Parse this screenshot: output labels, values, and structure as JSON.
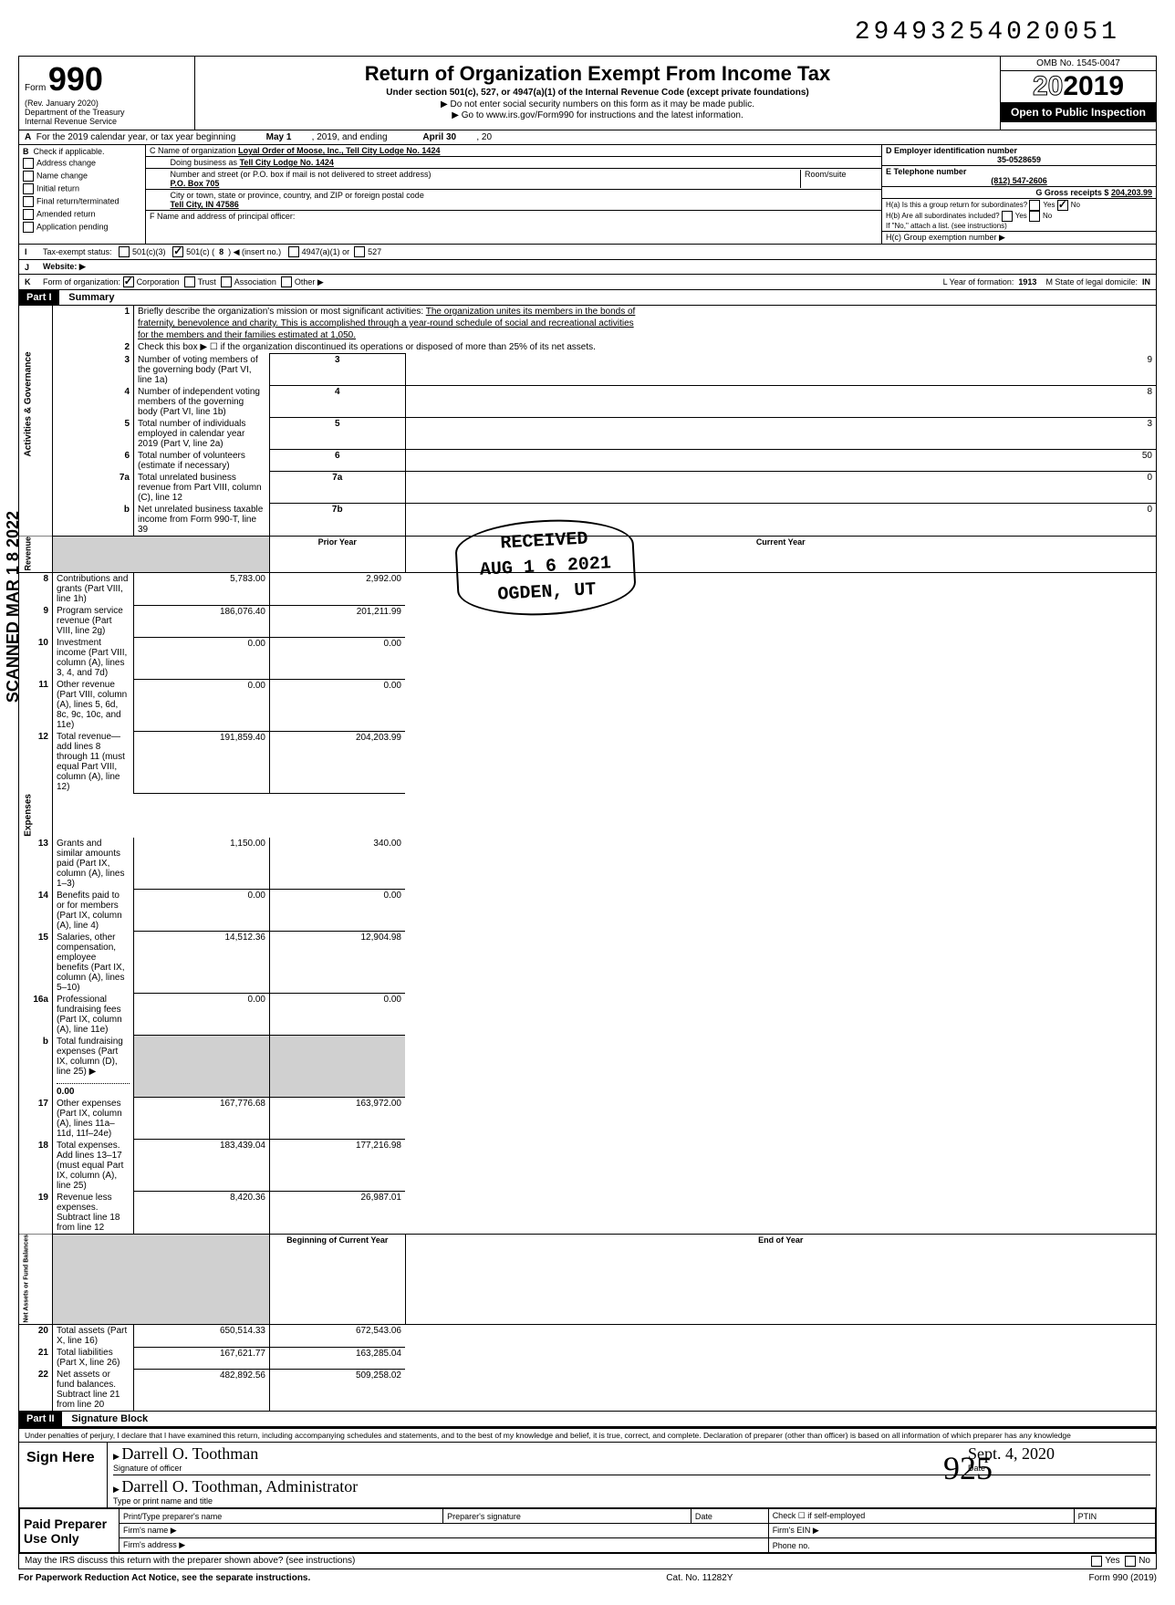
{
  "dln": "29493254020051",
  "omb": "OMB No. 1545-0047",
  "form_number": "990",
  "rev": "(Rev. January 2020)",
  "dept": "Department of the Treasury",
  "irs": "Internal Revenue Service",
  "title": "Return of Organization Exempt From Income Tax",
  "subtitle": "Under section 501(c), 527, or 4947(a)(1) of the Internal Revenue Code (except private foundations)",
  "note1": "▶ Do not enter social security numbers on this form as it may be made public.",
  "note2": "▶ Go to www.irs.gov/Form990 for instructions and the latest information.",
  "tax_year": "2019",
  "open_public": "Open to Public Inspection",
  "row_a": {
    "prefix": "A",
    "text": "For the 2019 calendar year, or tax year beginning",
    "begin": "May 1",
    "mid": ", 2019, and ending",
    "end": "April 30",
    "end_year": ", 20"
  },
  "checkboxes_b": {
    "label": "B",
    "intro": "Check if applicable.",
    "items": [
      "Address change",
      "Name change",
      "Initial return",
      "Final return/terminated",
      "Amended return",
      "Application pending"
    ]
  },
  "entity": {
    "c_label": "C Name of organization",
    "c_name": "Loyal Order of Moose, Inc., Tell City Lodge No. 1424",
    "dba_label": "Doing business as",
    "dba": "Tell City Lodge No. 1424",
    "street_label": "Number and street (or P.O. box if mail is not delivered to street address)",
    "street": "P.O. Box 705",
    "room_label": "Room/suite",
    "city_label": "City or town, state or province, country, and ZIP or foreign postal code",
    "city": "Tell City, IN 47586",
    "f_label": "F Name and address of principal officer:"
  },
  "right_col": {
    "d_label": "D Employer identification number",
    "d_ein": "35-0528659",
    "e_label": "E Telephone number",
    "e_phone": "(812) 547-2606",
    "g_label": "G Gross receipts $",
    "g_amount": "204,203.99",
    "ha_label": "H(a) Is this a group return for subordinates?",
    "hb_label": "H(b) Are all subordinates included?",
    "h_note": "If \"No,\" attach a list. (see instructions)",
    "hc_label": "H(c) Group exemption number ▶"
  },
  "row_i": {
    "label": "I",
    "text": "Tax-exempt status:",
    "opts": [
      "501(c)(3)",
      "501(c) (",
      "8",
      ") ◀ (insert no.)",
      "4947(a)(1) or",
      "527"
    ],
    "checked_index": 1
  },
  "row_j": {
    "label": "J",
    "text": "Website: ▶"
  },
  "row_k": {
    "label": "K",
    "form_of_org": "Form of organization:",
    "opts": [
      "Corporation",
      "Trust",
      "Association",
      "Other ▶"
    ],
    "year_label": "L Year of formation:",
    "year": "1913",
    "state_label": "M State of legal domicile:",
    "state": "IN"
  },
  "part1": {
    "header": "Part I",
    "title": "Summary",
    "mission_label": "Briefly describe the organization's mission or most significant activities:",
    "mission1": "The organization unites its members in the bonds of",
    "mission2": "fraternity, benevolence and charity. This is accomplished through a year-round schedule of social and recreational activities",
    "mission3": "for the members and their families estimated at 1,050.",
    "line2": "Check this box ▶ ☐ if the organization discontinued its operations or disposed of more than 25% of its net assets.",
    "line3": "Number of voting members of the governing body (Part VI, line 1a)",
    "line4": "Number of independent voting members of the governing body (Part VI, line 1b)",
    "line5": "Total number of individuals employed in calendar year 2019 (Part V, line 2a)",
    "line6": "Total number of volunteers (estimate if necessary)",
    "line7a": "Total unrelated business revenue from Part VIII, column (C), line 12",
    "line7b": "Net unrelated business taxable income from Form 990-T, line 39",
    "v3": "9",
    "v4": "8",
    "v5": "3",
    "v6": "50",
    "v7a": "0",
    "v7b": "0",
    "prior_label": "Prior Year",
    "current_label": "Current Year",
    "rows_rev": [
      {
        "n": "8",
        "t": "Contributions and grants (Part VIII, line 1h)",
        "p": "5,783.00",
        "c": "2,992.00"
      },
      {
        "n": "9",
        "t": "Program service revenue (Part VIII, line 2g)",
        "p": "186,076.40",
        "c": "201,211.99"
      },
      {
        "n": "10",
        "t": "Investment income (Part VIII, column (A), lines 3, 4, and 7d)",
        "p": "0.00",
        "c": "0.00"
      },
      {
        "n": "11",
        "t": "Other revenue (Part VIII, column (A), lines 5, 6d, 8c, 9c, 10c, and 11e)",
        "p": "0.00",
        "c": "0.00"
      },
      {
        "n": "12",
        "t": "Total revenue—add lines 8 through 11 (must equal Part VIII, column (A), line 12)",
        "p": "191,859.40",
        "c": "204,203.99"
      }
    ],
    "rows_exp": [
      {
        "n": "13",
        "t": "Grants and similar amounts paid (Part IX, column (A), lines 1–3)",
        "p": "1,150.00",
        "c": "340.00"
      },
      {
        "n": "14",
        "t": "Benefits paid to or for members (Part IX, column (A), line 4)",
        "p": "0.00",
        "c": "0.00"
      },
      {
        "n": "15",
        "t": "Salaries, other compensation, employee benefits (Part IX, column (A), lines 5–10)",
        "p": "14,512.36",
        "c": "12,904.98"
      },
      {
        "n": "16a",
        "t": "Professional fundraising fees (Part IX, column (A), line 11e)",
        "p": "0.00",
        "c": "0.00"
      },
      {
        "n": "b",
        "t": "Total fundraising expenses (Part IX, column (D), line 25) ▶",
        "p": "",
        "c": "",
        "inline": "0.00"
      },
      {
        "n": "17",
        "t": "Other expenses (Part IX, column (A), lines 11a–11d, 11f–24e)",
        "p": "167,776.68",
        "c": "163,972.00"
      },
      {
        "n": "18",
        "t": "Total expenses. Add lines 13–17 (must equal Part IX, column (A), line 25)",
        "p": "183,439.04",
        "c": "177,216.98"
      },
      {
        "n": "19",
        "t": "Revenue less expenses. Subtract line 18 from line 12",
        "p": "8,420.36",
        "c": "26,987.01"
      }
    ],
    "boy_label": "Beginning of Current Year",
    "eoy_label": "End of Year",
    "rows_net": [
      {
        "n": "20",
        "t": "Total assets (Part X, line 16)",
        "p": "650,514.33",
        "c": "672,543.06"
      },
      {
        "n": "21",
        "t": "Total liabilities (Part X, line 26)",
        "p": "167,621.77",
        "c": "163,285.04"
      },
      {
        "n": "22",
        "t": "Net assets or fund balances. Subtract line 21 from line 20",
        "p": "482,892.56",
        "c": "509,258.02"
      }
    ],
    "side_labels": {
      "gov": "Activities & Governance",
      "rev": "Revenue",
      "exp": "Expenses",
      "net": "Net Assets or Fund Balances"
    }
  },
  "part2": {
    "header": "Part II",
    "title": "Signature Block",
    "perjury": "Under penalties of perjury, I declare that I have examined this return, including accompanying schedules and statements, and to the best of my knowledge and belief, it is true, correct, and complete. Declaration of preparer (other than officer) is based on all information of which preparer has any knowledge",
    "sign_here": "Sign Here",
    "sig_officer": "Darrell O. Toothman",
    "sig_officer_label": "Signature of officer",
    "sig_date": "Sept. 4, 2020",
    "date_label": "Date",
    "sig_name": "Darrell O. Toothman, Administrator",
    "sig_name_label": "Type or print name and title",
    "paid": "Paid Preparer Use Only",
    "prep_name_label": "Print/Type preparer's name",
    "prep_sig_label": "Preparer's signature",
    "check_self": "Check ☐ if self-employed",
    "ptin": "PTIN",
    "firm_name": "Firm's name ▶",
    "firm_ein": "Firm's EIN ▶",
    "firm_addr": "Firm's address ▶",
    "phone": "Phone no.",
    "discuss": "May the IRS discuss this return with the preparer shown above? (see instructions)",
    "yes": "Yes",
    "no": "No"
  },
  "footer": {
    "pra": "For Paperwork Reduction Act Notice, see the separate instructions.",
    "cat": "Cat. No. 11282Y",
    "form": "Form 990 (2019)"
  },
  "scanned": "SCANNED MAR 1 8 2022",
  "stamp": {
    "received": "RECEIVED",
    "date": "AUG 1 6 2021",
    "loc": "OGDEN, UT"
  },
  "handwrite": "925"
}
